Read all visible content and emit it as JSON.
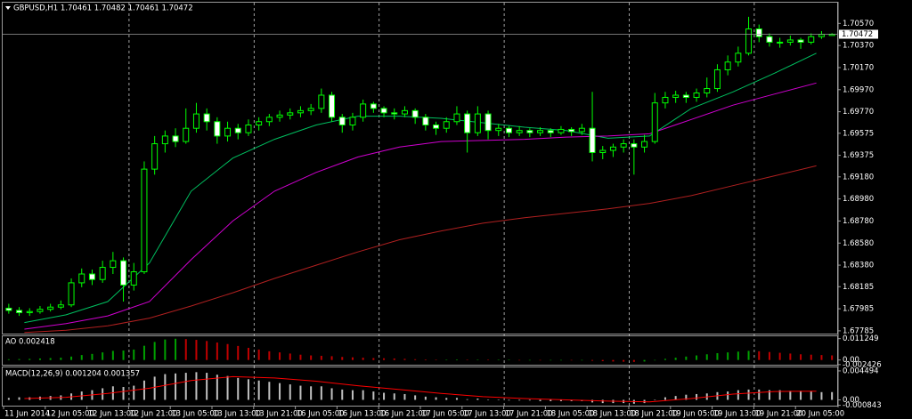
{
  "chart_data": [
    {
      "type": "candlestick",
      "title": "GBPUSD,H1  1.70461 1.70482 1.70461 1.70472",
      "categories": [
        "11 Jun 2014",
        "12 Jun 05:00",
        "12 Jun 13:00",
        "12 Jun 21:00",
        "13 Jun 05:00",
        "13 Jun 13:00",
        "13 Jun 21:00",
        "16 Jun 05:00",
        "16 Jun 13:00",
        "16 Jun 21:00",
        "17 Jun 05:00",
        "17 Jun 13:00",
        "17 Jun 21:00",
        "18 Jun 05:00",
        "18 Jun 13:00",
        "18 Jun 21:00",
        "19 Jun 05:00",
        "19 Jun 13:00",
        "19 Jun 21:00",
        "20 Jun 05:00"
      ],
      "ohlc": [
        [
          1.6799,
          1.6803,
          1.6794,
          1.6797
        ],
        [
          1.6797,
          1.68,
          1.6792,
          1.6795
        ],
        [
          1.6795,
          1.6799,
          1.6792,
          1.6796
        ],
        [
          1.6796,
          1.6801,
          1.6794,
          1.6798
        ],
        [
          1.6798,
          1.6803,
          1.6796,
          1.68
        ],
        [
          1.68,
          1.6806,
          1.6798,
          1.6802
        ],
        [
          1.6802,
          1.6826,
          1.68,
          1.6822
        ],
        [
          1.6822,
          1.6835,
          1.6818,
          1.683
        ],
        [
          1.683,
          1.6834,
          1.682,
          1.6825
        ],
        [
          1.6825,
          1.6842,
          1.6822,
          1.6836
        ],
        [
          1.6836,
          1.685,
          1.683,
          1.6842
        ],
        [
          1.6842,
          1.6845,
          1.6805,
          1.682
        ],
        [
          1.682,
          1.684,
          1.6815,
          1.6832
        ],
        [
          1.6832,
          1.6932,
          1.683,
          1.6925
        ],
        [
          1.6925,
          1.6955,
          1.692,
          1.6948
        ],
        [
          1.6948,
          1.696,
          1.694,
          1.6955
        ],
        [
          1.6955,
          1.6962,
          1.6945,
          1.695
        ],
        [
          1.695,
          1.698,
          1.6948,
          1.6962
        ],
        [
          1.6962,
          1.6985,
          1.6958,
          1.6975
        ],
        [
          1.6975,
          1.698,
          1.696,
          1.6968
        ],
        [
          1.6968,
          1.6972,
          1.6948,
          1.6955
        ],
        [
          1.6955,
          1.6968,
          1.695,
          1.6962
        ],
        [
          1.6962,
          1.6966,
          1.6952,
          1.6958
        ],
        [
          1.6958,
          1.697,
          1.6955,
          1.6965
        ],
        [
          1.6965,
          1.6972,
          1.696,
          1.6968
        ],
        [
          1.6968,
          1.6975,
          1.6964,
          1.6972
        ],
        [
          1.6972,
          1.6978,
          1.6968,
          1.6974
        ],
        [
          1.6974,
          1.698,
          1.697,
          1.6976
        ],
        [
          1.6976,
          1.6982,
          1.6972,
          1.6978
        ],
        [
          1.6978,
          1.6984,
          1.6974,
          1.698
        ],
        [
          1.698,
          1.6998,
          1.6976,
          1.6992
        ],
        [
          1.6992,
          1.6995,
          1.6968,
          1.6972
        ],
        [
          1.6972,
          1.6975,
          1.6958,
          1.6965
        ],
        [
          1.6965,
          1.6976,
          1.696,
          1.6972
        ],
        [
          1.6972,
          1.6988,
          1.6968,
          1.6984
        ],
        [
          1.6984,
          1.6986,
          1.6976,
          1.698
        ],
        [
          1.698,
          1.6982,
          1.6972,
          1.6976
        ],
        [
          1.6976,
          1.698,
          1.697,
          1.6975
        ],
        [
          1.6975,
          1.6982,
          1.6972,
          1.6978
        ],
        [
          1.6978,
          1.698,
          1.6966,
          1.6972
        ],
        [
          1.6972,
          1.6975,
          1.696,
          1.6965
        ],
        [
          1.6965,
          1.6968,
          1.6956,
          1.6962
        ],
        [
          1.6962,
          1.6972,
          1.6958,
          1.6968
        ],
        [
          1.6968,
          1.6982,
          1.6965,
          1.6975
        ],
        [
          1.6975,
          1.6978,
          1.694,
          1.6958
        ],
        [
          1.6958,
          1.6982,
          1.6955,
          1.6975
        ],
        [
          1.6975,
          1.6978,
          1.6952,
          1.696
        ],
        [
          1.696,
          1.6966,
          1.6955,
          1.6962
        ],
        [
          1.6962,
          1.6964,
          1.6954,
          1.6958
        ],
        [
          1.6958,
          1.6964,
          1.6955,
          1.696
        ],
        [
          1.696,
          1.6962,
          1.6954,
          1.6958
        ],
        [
          1.6958,
          1.6963,
          1.6955,
          1.696
        ],
        [
          1.696,
          1.6962,
          1.6954,
          1.6958
        ],
        [
          1.6958,
          1.6964,
          1.6956,
          1.6961
        ],
        [
          1.6961,
          1.6963,
          1.6955,
          1.6959
        ],
        [
          1.6959,
          1.6966,
          1.6956,
          1.6962
        ],
        [
          1.6962,
          1.6995,
          1.6932,
          1.694
        ],
        [
          1.694,
          1.6946,
          1.6934,
          1.6942
        ],
        [
          1.6942,
          1.6948,
          1.6936,
          1.6945
        ],
        [
          1.6945,
          1.6952,
          1.694,
          1.6948
        ],
        [
          1.6948,
          1.6952,
          1.692,
          1.6945
        ],
        [
          1.6945,
          1.6956,
          1.694,
          1.695
        ],
        [
          1.695,
          1.6994,
          1.6948,
          1.6985
        ],
        [
          1.6985,
          1.6995,
          1.698,
          1.699
        ],
        [
          1.699,
          1.6996,
          1.6985,
          1.6992
        ],
        [
          1.6992,
          1.6995,
          1.6985,
          1.699
        ],
        [
          1.699,
          1.6998,
          1.6986,
          1.6994
        ],
        [
          1.6994,
          1.7008,
          1.699,
          1.6998
        ],
        [
          1.6998,
          1.702,
          1.6995,
          1.7015
        ],
        [
          1.7015,
          1.7028,
          1.701,
          1.7022
        ],
        [
          1.7022,
          1.7036,
          1.7018,
          1.703
        ],
        [
          1.703,
          1.7063,
          1.7028,
          1.7052
        ],
        [
          1.7052,
          1.7056,
          1.704,
          1.7045
        ],
        [
          1.7045,
          1.7048,
          1.7036,
          1.704
        ],
        [
          1.704,
          1.7044,
          1.7035,
          1.704
        ],
        [
          1.704,
          1.7046,
          1.7037,
          1.7042
        ],
        [
          1.7042,
          1.7044,
          1.7034,
          1.704
        ],
        [
          1.704,
          1.7048,
          1.7038,
          1.7045
        ],
        [
          1.7045,
          1.705,
          1.7043,
          1.7047
        ],
        [
          1.70461,
          1.70482,
          1.70461,
          1.70472
        ]
      ],
      "outline_color": "#00ff00",
      "bull_fill": "#000000",
      "bear_fill": "#ffffff",
      "series": [
        {
          "color": "#00c060",
          "values": [
            1.6786,
            1.6793,
            1.6805,
            1.684,
            1.6905,
            1.6935,
            1.6952,
            1.6965,
            1.6973,
            1.6973,
            1.6971,
            1.6967,
            1.6963,
            1.696,
            1.6953,
            1.6955,
            1.698,
            1.6995,
            1.7012,
            1.703
          ]
        },
        {
          "color": "#d000d0",
          "values": [
            1.678,
            1.6785,
            1.6792,
            1.6805,
            1.6843,
            1.6878,
            1.6905,
            1.6922,
            1.6936,
            1.6945,
            1.695,
            1.6951,
            1.6952,
            1.6954,
            1.6955,
            1.6957,
            1.697,
            1.6983,
            1.6993,
            1.7003
          ]
        },
        {
          "color": "#b02020",
          "values": [
            1.6777,
            1.6779,
            1.6783,
            1.679,
            1.6801,
            1.6813,
            1.6826,
            1.6838,
            1.685,
            1.6861,
            1.6869,
            1.6876,
            1.6881,
            1.6885,
            1.6889,
            1.6894,
            1.6901,
            1.691,
            1.6919,
            1.6928
          ]
        }
      ],
      "current_price": 1.70472,
      "ylim": [
        1.6776,
        1.7075
      ],
      "yticks": [
        {
          "value": 1.7057,
          "label": "1.70570"
        },
        {
          "value": 1.7037,
          "label": "1.70370"
        },
        {
          "value": 1.7017,
          "label": "1.70170"
        },
        {
          "value": 1.6997,
          "label": "1.69970"
        },
        {
          "value": 1.6977,
          "label": "1.69770"
        },
        {
          "value": 1.69575,
          "label": "1.69575"
        },
        {
          "value": 1.69375,
          "label": "1.69375"
        },
        {
          "value": 1.6918,
          "label": "1.69180"
        },
        {
          "value": 1.6898,
          "label": "1.68980"
        },
        {
          "value": 1.6878,
          "label": "1.68780"
        },
        {
          "value": 1.6858,
          "label": "1.68580"
        },
        {
          "value": 1.6838,
          "label": "1.68380"
        },
        {
          "value": 1.68185,
          "label": "1.68185"
        },
        {
          "value": 1.67985,
          "label": "1.67985"
        },
        {
          "value": 1.67785,
          "label": "1.67785"
        }
      ]
    },
    {
      "type": "ao",
      "title": "AO 0.002418",
      "values": [
        0.0004,
        0.0005,
        0.0006,
        0.0008,
        0.001,
        0.0012,
        0.0018,
        0.0026,
        0.0032,
        0.004,
        0.0048,
        0.005,
        0.0055,
        0.0075,
        0.0095,
        0.0108,
        0.0112,
        0.011,
        0.0106,
        0.01,
        0.0092,
        0.0084,
        0.0074,
        0.0064,
        0.0055,
        0.0046,
        0.004,
        0.0034,
        0.0028,
        0.0024,
        0.0022,
        0.002,
        0.0016,
        0.0014,
        0.0012,
        0.001,
        0.0009,
        0.0008,
        0.0006,
        0.0004,
        0.0003,
        0.0002,
        0.0002,
        0.0003,
        0.0002,
        0.0002,
        0.0001,
        0.0001,
        0.0001,
        0,
        0,
        -0.0001,
        -0.0001,
        -0.0001,
        -0.0002,
        -0.0002,
        -0.0004,
        -0.0006,
        -0.0008,
        -0.0009,
        -0.001,
        -0.0008,
        -0.0002,
        0.0006,
        0.0012,
        0.0018,
        0.0024,
        0.003,
        0.0036,
        0.004,
        0.0044,
        0.0048,
        0.0046,
        0.0042,
        0.0038,
        0.0034,
        0.003,
        0.0028,
        0.0026,
        0.002418
      ],
      "up_color": "#00a000",
      "down_color": "#c00000",
      "ylim": [
        -0.0025,
        0.0125
      ],
      "yticks": [
        {
          "value": 0.011249,
          "label": "0.011249"
        },
        {
          "value": 0,
          "label": "0.00"
        },
        {
          "value": -0.002426,
          "label": "-0.002426"
        }
      ]
    },
    {
      "type": "macd",
      "title": "MACD(12,26,9) 0.001204 0.001357",
      "values": [
        0.0003,
        0.0004,
        0.0004,
        0.0005,
        0.0006,
        0.0007,
        0.001,
        0.0013,
        0.0015,
        0.0018,
        0.0021,
        0.002,
        0.0022,
        0.003,
        0.0036,
        0.004,
        0.0041,
        0.0042,
        0.0043,
        0.0042,
        0.0039,
        0.0037,
        0.0034,
        0.0032,
        0.003,
        0.0028,
        0.0026,
        0.0024,
        0.0022,
        0.0021,
        0.0021,
        0.0018,
        0.0016,
        0.0015,
        0.0015,
        0.0013,
        0.0011,
        0.001,
        0.0009,
        0.0007,
        0.0005,
        0.0004,
        0.0003,
        0.0003,
        0.0001,
        0.0002,
        0,
        0,
        -0.0001,
        -0.0001,
        -0.0001,
        -0.0002,
        -0.0002,
        -0.0002,
        -0.0002,
        -0.0002,
        -0.0004,
        -0.0005,
        -0.0005,
        -0.0005,
        -0.0006,
        -0.0005,
        0,
        0.0004,
        0.0006,
        0.0008,
        0.0009,
        0.001,
        0.0012,
        0.0013,
        0.0015,
        0.0016,
        0.0016,
        0.0015,
        0.0015,
        0.0014,
        0.0014,
        0.0013,
        0.0012,
        0.001204
      ],
      "color": "#c0c0c0",
      "series": [
        {
          "color": "#ff0000",
          "values": [
            0.0002,
            0.0004,
            0.001,
            0.0018,
            0.003,
            0.0036,
            0.0034,
            0.0029,
            0.0022,
            0.0016,
            0.001,
            0.0005,
            0.0002,
            0,
            -0.0002,
            -0.0003,
            0.0002,
            0.0009,
            0.0013,
            0.001357
          ]
        }
      ],
      "ylim": [
        -0.0009,
        0.0049
      ],
      "yticks": [
        {
          "value": 0.004494,
          "label": "0.004494"
        },
        {
          "value": 0,
          "label": "0.00"
        },
        {
          "value": -0.000843,
          "label": "-0.000843"
        }
      ]
    }
  ]
}
